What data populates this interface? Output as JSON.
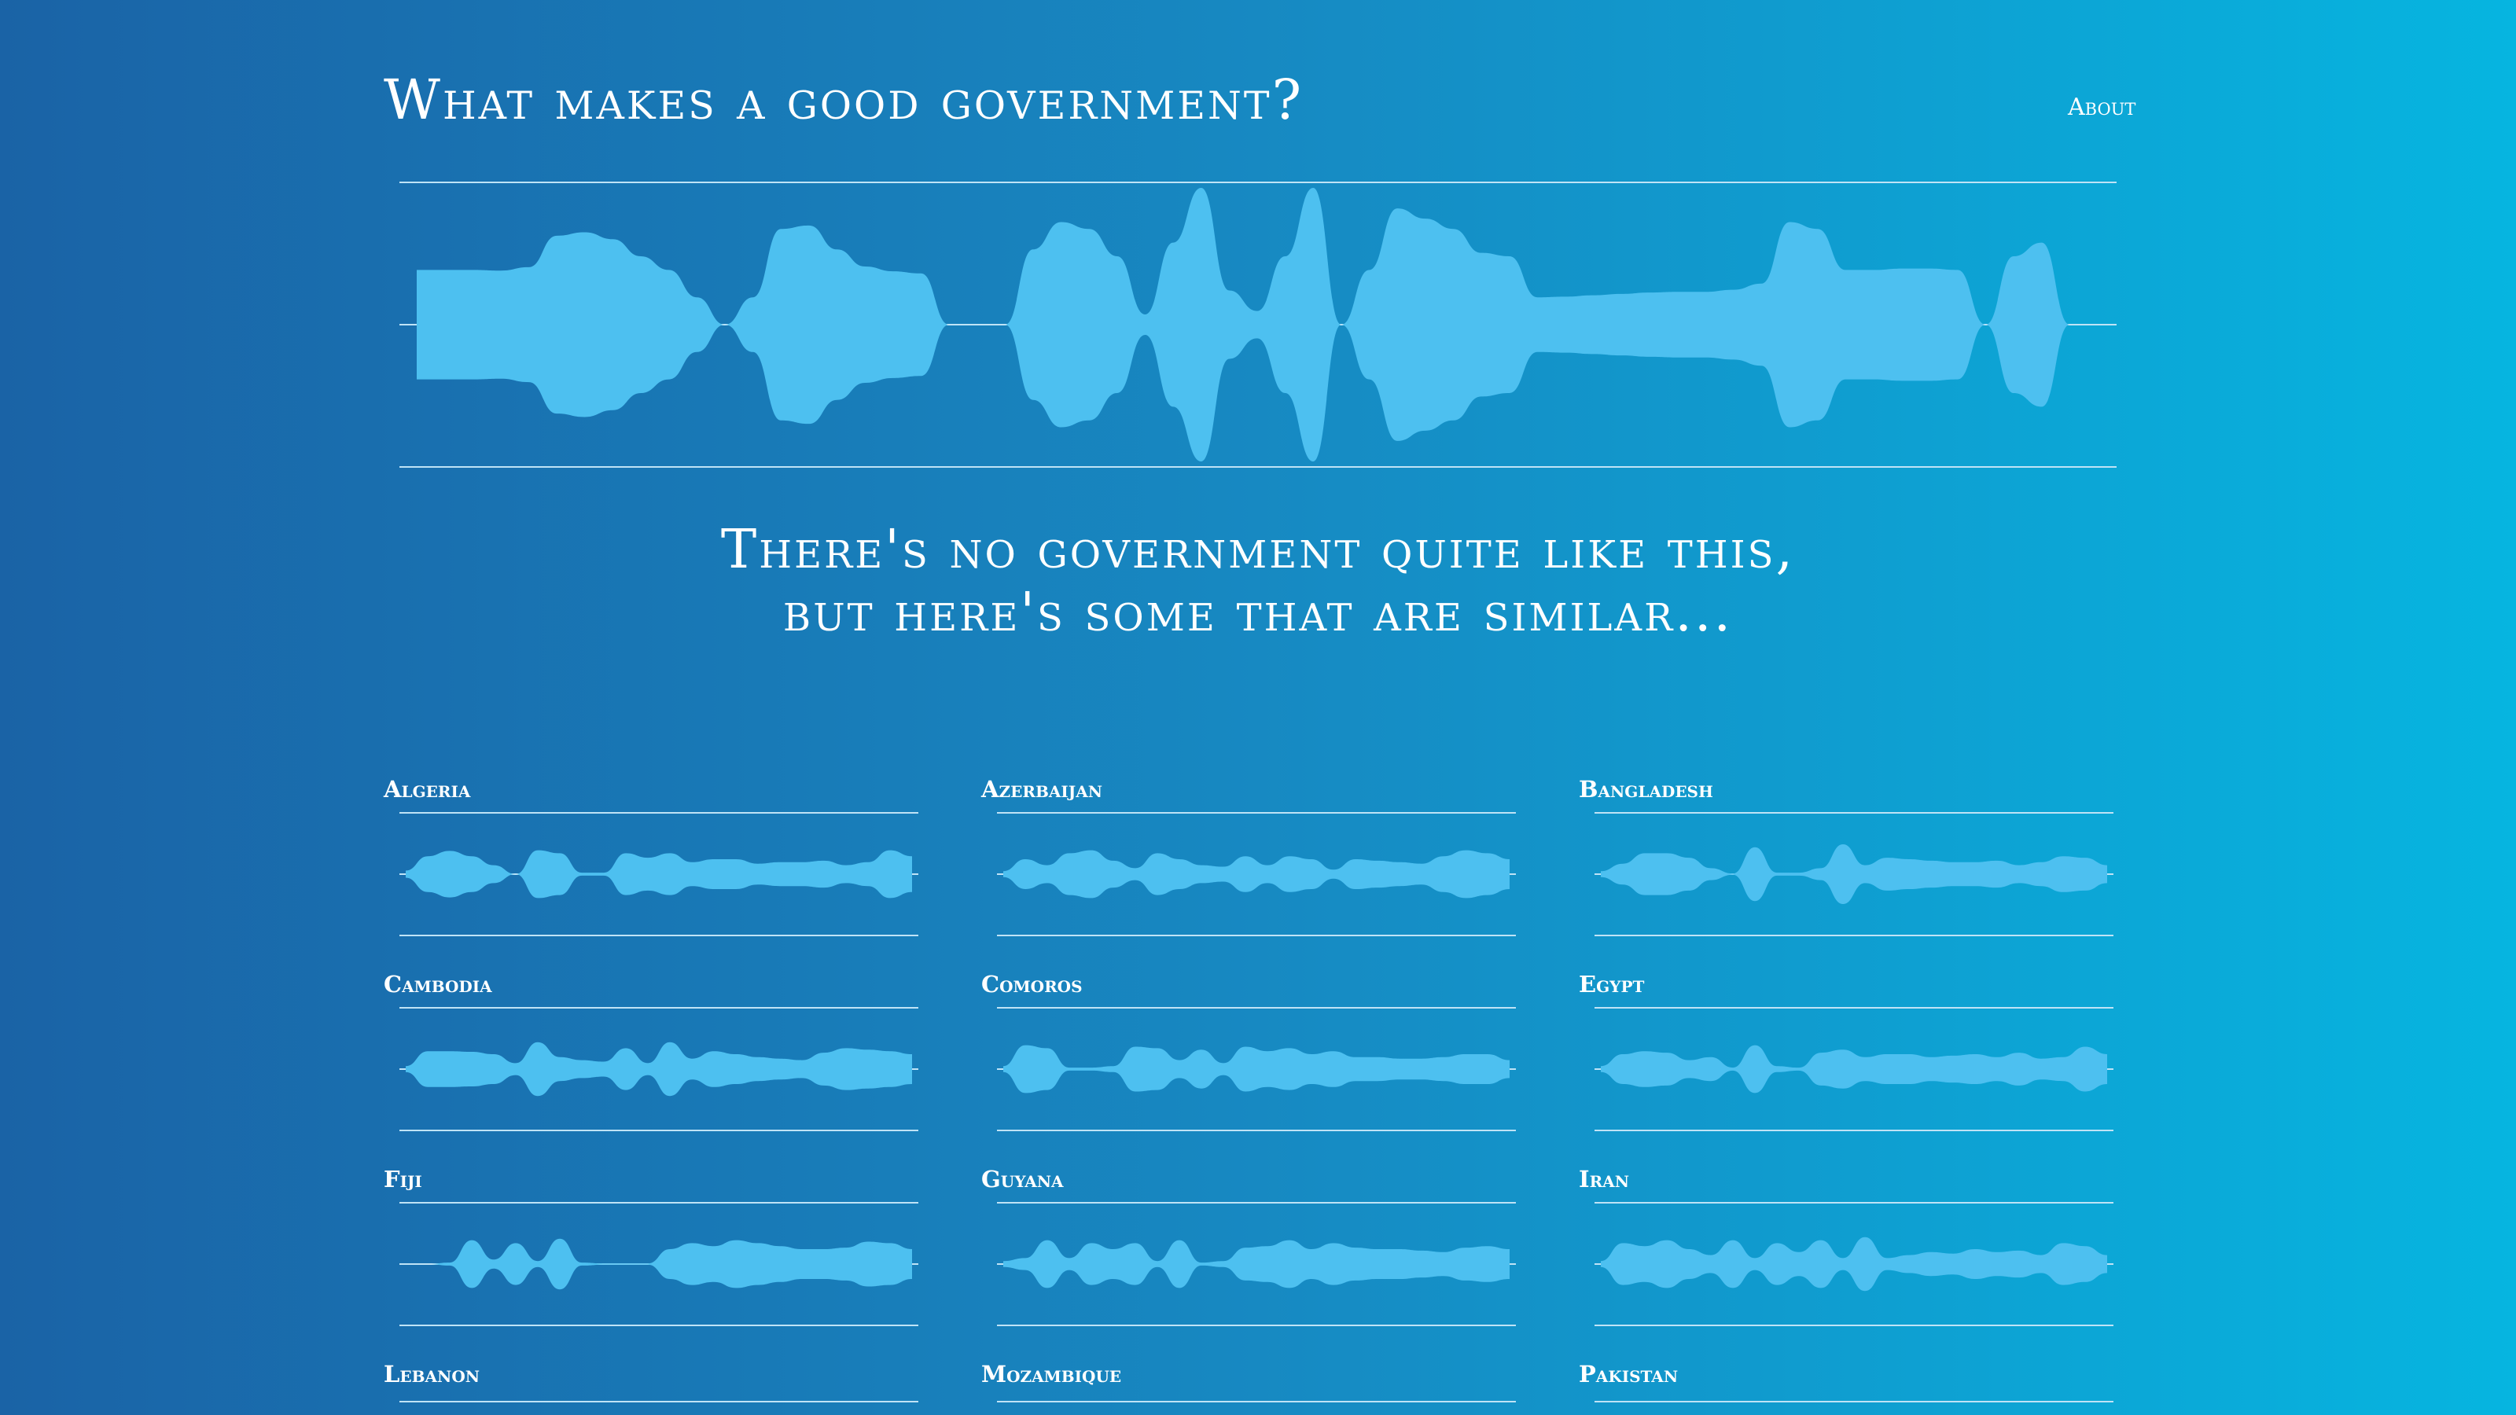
{
  "header": {
    "title": "What makes a good government?",
    "about_label": "About"
  },
  "colors": {
    "wave_fill": "#4dc0f0",
    "rule_line": "#bfe3f6"
  },
  "subtitle": "There's no government quite like this, but here's some that are similar...",
  "main_profile": [
    0.8,
    0.8,
    0.8,
    0.79,
    0.84,
    1.3,
    1.35,
    1.25,
    1.0,
    0.8,
    0.4,
    0.0,
    0.4,
    1.4,
    1.45,
    1.1,
    0.85,
    0.78,
    0.75,
    0.0,
    0.0,
    0.0,
    1.1,
    1.5,
    1.4,
    1.0,
    0.15,
    1.2,
    2.0,
    0.5,
    0.2,
    1.0,
    2.0,
    0.0,
    0.8,
    1.7,
    1.55,
    1.4,
    1.05,
    1.0,
    0.4,
    0.41,
    0.43,
    0.45,
    0.47,
    0.48,
    0.48,
    0.51,
    0.6,
    1.5,
    1.4,
    0.8,
    0.8,
    0.82,
    0.82,
    0.8,
    0.0,
    1.0,
    1.2,
    0.0,
    0.0
  ],
  "countries": [
    {
      "name": "Algeria",
      "profile": [
        0.12,
        0.6,
        0.78,
        0.6,
        0.3,
        0.0,
        0.8,
        0.7,
        0.05,
        0.05,
        0.7,
        0.55,
        0.7,
        0.4,
        0.5,
        0.5,
        0.35,
        0.4,
        0.4,
        0.45,
        0.3,
        0.4,
        0.8,
        0.6
      ]
    },
    {
      "name": "Azerbaijan",
      "profile": [
        0.1,
        0.5,
        0.3,
        0.7,
        0.8,
        0.45,
        0.2,
        0.7,
        0.5,
        0.3,
        0.25,
        0.6,
        0.3,
        0.6,
        0.5,
        0.15,
        0.5,
        0.45,
        0.4,
        0.35,
        0.6,
        0.8,
        0.7,
        0.5
      ]
    },
    {
      "name": "Bangladesh",
      "profile": [
        0.1,
        0.35,
        0.7,
        0.7,
        0.55,
        0.2,
        0.02,
        0.9,
        0.05,
        0.05,
        0.2,
        1.0,
        0.3,
        0.55,
        0.5,
        0.45,
        0.4,
        0.4,
        0.45,
        0.3,
        0.4,
        0.6,
        0.55,
        0.3
      ]
    },
    {
      "name": "Cambodia",
      "profile": [
        0.1,
        0.6,
        0.6,
        0.58,
        0.5,
        0.2,
        0.9,
        0.4,
        0.3,
        0.25,
        0.7,
        0.2,
        0.9,
        0.35,
        0.6,
        0.5,
        0.4,
        0.35,
        0.3,
        0.55,
        0.7,
        0.65,
        0.6,
        0.5
      ]
    },
    {
      "name": "Comoros",
      "profile": [
        0.1,
        0.8,
        0.7,
        0.05,
        0.05,
        0.1,
        0.75,
        0.7,
        0.3,
        0.65,
        0.2,
        0.75,
        0.6,
        0.7,
        0.5,
        0.6,
        0.4,
        0.4,
        0.35,
        0.35,
        0.4,
        0.5,
        0.5,
        0.3
      ]
    },
    {
      "name": "Egypt",
      "profile": [
        0.1,
        0.5,
        0.6,
        0.55,
        0.3,
        0.4,
        0.05,
        0.8,
        0.1,
        0.05,
        0.55,
        0.65,
        0.4,
        0.5,
        0.5,
        0.4,
        0.45,
        0.5,
        0.4,
        0.55,
        0.35,
        0.4,
        0.75,
        0.5
      ]
    },
    {
      "name": "Fiji",
      "profile": [
        0.0,
        0.0,
        0.05,
        0.8,
        0.15,
        0.7,
        0.1,
        0.85,
        0.05,
        0.02,
        0.02,
        0.02,
        0.5,
        0.7,
        0.6,
        0.8,
        0.7,
        0.6,
        0.5,
        0.5,
        0.55,
        0.75,
        0.7,
        0.5
      ]
    },
    {
      "name": "Guyana",
      "profile": [
        0.1,
        0.2,
        0.8,
        0.2,
        0.7,
        0.5,
        0.7,
        0.1,
        0.8,
        0.05,
        0.1,
        0.55,
        0.6,
        0.8,
        0.5,
        0.7,
        0.55,
        0.5,
        0.5,
        0.45,
        0.4,
        0.55,
        0.6,
        0.5
      ]
    },
    {
      "name": "Iran",
      "profile": [
        0.1,
        0.7,
        0.6,
        0.8,
        0.5,
        0.3,
        0.8,
        0.2,
        0.7,
        0.4,
        0.8,
        0.2,
        0.9,
        0.2,
        0.3,
        0.4,
        0.35,
        0.5,
        0.4,
        0.45,
        0.3,
        0.7,
        0.6,
        0.3
      ]
    },
    {
      "name": "Lebanon",
      "profile": []
    },
    {
      "name": "Mozambique",
      "profile": []
    },
    {
      "name": "Pakistan",
      "profile": []
    }
  ]
}
